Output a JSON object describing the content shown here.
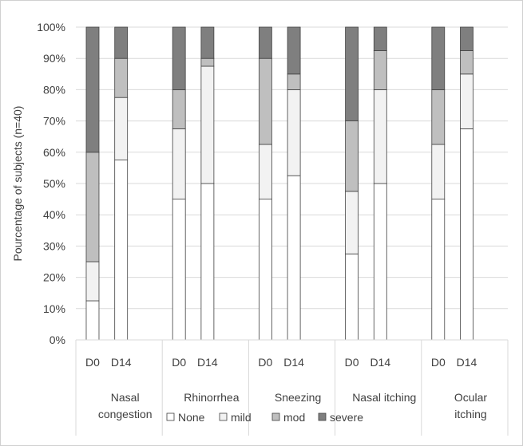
{
  "chart_data": {
    "type": "bar",
    "stacked": true,
    "percent": true,
    "ylabel": "Pourcentage of subjects (n=40)",
    "ylim": [
      0,
      100
    ],
    "y_ticks": [
      "0%",
      "10%",
      "20%",
      "30%",
      "40%",
      "50%",
      "60%",
      "70%",
      "80%",
      "90%",
      "100%"
    ],
    "grid": true,
    "legend_position": "bottom",
    "groups": [
      {
        "label_lines": [
          "Nasal",
          "congestion"
        ]
      },
      {
        "label_lines": [
          "Rhinorrhea"
        ]
      },
      {
        "label_lines": [
          "Sneezing"
        ]
      },
      {
        "label_lines": [
          "Nasal itching"
        ]
      },
      {
        "label_lines": [
          "Ocular",
          "itching"
        ]
      }
    ],
    "categories": [
      "Nasal congestion D0",
      "Nasal congestion D14",
      "Rhinorrhea D0",
      "Rhinorrhea D14",
      "Sneezing D0",
      "Sneezing D14",
      "Nasal itching D0",
      "Nasal itching D14",
      "Ocular itching D0",
      "Ocular itching D14"
    ],
    "sub_labels": [
      "D0",
      "D14",
      "D0",
      "D14",
      "D0",
      "D14",
      "D0",
      "D14",
      "D0",
      "D14"
    ],
    "series": [
      {
        "name": "None",
        "color": "#ffffff",
        "values": [
          12.5,
          57.5,
          45,
          50,
          45,
          52.5,
          27.5,
          50,
          45,
          67.5
        ]
      },
      {
        "name": "mild",
        "color": "#f2f2f2",
        "values": [
          12.5,
          20,
          22.5,
          37.5,
          17.5,
          27.5,
          20,
          30,
          17.5,
          17.5
        ]
      },
      {
        "name": "mod",
        "color": "#bfbfbf",
        "values": [
          35,
          12.5,
          12.5,
          2.5,
          27.5,
          5,
          22.5,
          12.5,
          17.5,
          7.5
        ]
      },
      {
        "name": "severe",
        "color": "#7f7f7f",
        "values": [
          40,
          10,
          20,
          10,
          10,
          15,
          30,
          7.5,
          20,
          7.5
        ]
      }
    ]
  }
}
